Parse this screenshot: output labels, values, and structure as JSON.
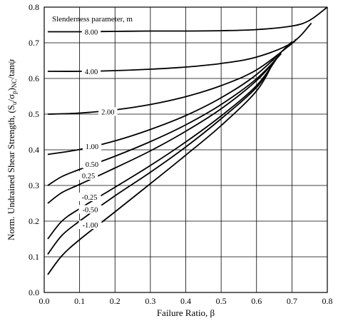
{
  "chart_data": {
    "type": "line",
    "title": "",
    "xlabel": "Failure Ratio, β",
    "ylabel_parts": {
      "a": "Norm. Undrained Shear Strength, (S",
      "u": "u",
      "b": "/σ",
      "p": "p",
      "c": ")",
      "nc": "NC",
      "d": "/tanψ"
    },
    "annotation": "Slenderness parameter, m",
    "xlim": [
      0,
      0.8
    ],
    "ylim": [
      0,
      0.8
    ],
    "grid": true,
    "x_ticks": [
      "0.0",
      "0.1",
      "0.2",
      "0.3",
      "0.4",
      "0.5",
      "0.6",
      "0.7",
      "0.8"
    ],
    "y_ticks": [
      "0.0",
      "0.1",
      "0.2",
      "0.3",
      "0.4",
      "0.5",
      "0.6",
      "0.7",
      "0.8"
    ],
    "series": [
      {
        "name": "8.00",
        "x": [
          0.01,
          0.1,
          0.2,
          0.3,
          0.4,
          0.5,
          0.6,
          0.7,
          0.75,
          0.8
        ],
        "y": [
          0.731,
          0.731,
          0.732,
          0.733,
          0.733,
          0.734,
          0.737,
          0.747,
          0.763,
          0.8
        ]
      },
      {
        "name": "4.00",
        "x": [
          0.01,
          0.1,
          0.2,
          0.3,
          0.4,
          0.5,
          0.6,
          0.7,
          0.755
        ],
        "y": [
          0.62,
          0.62,
          0.622,
          0.626,
          0.632,
          0.642,
          0.66,
          0.7,
          0.755
        ]
      },
      {
        "name": "2.00",
        "x": [
          0.01,
          0.1,
          0.2,
          0.3,
          0.4,
          0.5,
          0.6,
          0.7,
          0.71
        ],
        "y": [
          0.5,
          0.503,
          0.512,
          0.527,
          0.549,
          0.58,
          0.624,
          0.698,
          0.71
        ]
      },
      {
        "name": "1.00",
        "x": [
          0.01,
          0.1,
          0.2,
          0.3,
          0.4,
          0.5,
          0.6,
          0.7
        ],
        "y": [
          0.387,
          0.401,
          0.425,
          0.457,
          0.496,
          0.546,
          0.611,
          0.703
        ]
      },
      {
        "name": "0.50",
        "x": [
          0.01,
          0.05,
          0.1,
          0.2,
          0.3,
          0.4,
          0.5,
          0.6,
          0.67
        ],
        "y": [
          0.3,
          0.325,
          0.345,
          0.382,
          0.423,
          0.47,
          0.527,
          0.599,
          0.67
        ]
      },
      {
        "name": "0.25",
        "x": [
          0.01,
          0.05,
          0.1,
          0.2,
          0.3,
          0.4,
          0.5,
          0.6,
          0.665
        ],
        "y": [
          0.25,
          0.28,
          0.303,
          0.349,
          0.397,
          0.452,
          0.515,
          0.594,
          0.665
        ]
      },
      {
        "name": "-0.25",
        "x": [
          0.01,
          0.05,
          0.1,
          0.2,
          0.3,
          0.4,
          0.5,
          0.6,
          0.66
        ],
        "y": [
          0.15,
          0.2,
          0.235,
          0.295,
          0.356,
          0.422,
          0.495,
          0.58,
          0.66
        ]
      },
      {
        "name": "-0.50",
        "x": [
          0.01,
          0.05,
          0.1,
          0.2,
          0.3,
          0.4,
          0.5,
          0.6,
          0.655
        ],
        "y": [
          0.107,
          0.16,
          0.2,
          0.271,
          0.337,
          0.408,
          0.487,
          0.575,
          0.655
        ]
      },
      {
        "name": "-1.00",
        "x": [
          0.01,
          0.05,
          0.1,
          0.2,
          0.3,
          0.4,
          0.5,
          0.6,
          0.65
        ],
        "y": [
          0.05,
          0.103,
          0.148,
          0.226,
          0.305,
          0.385,
          0.468,
          0.565,
          0.65
        ]
      }
    ],
    "curve_labels": [
      {
        "text": "8.00",
        "x": 0.133,
        "y": 0.731
      },
      {
        "text": "4.00",
        "x": 0.133,
        "y": 0.62
      },
      {
        "text": "2.00",
        "x": 0.18,
        "y": 0.507
      },
      {
        "text": "1.00",
        "x": 0.135,
        "y": 0.41
      },
      {
        "text": "0.50",
        "x": 0.135,
        "y": 0.36
      },
      {
        "text": "0.25",
        "x": 0.125,
        "y": 0.328
      },
      {
        "text": "-0.25",
        "x": 0.128,
        "y": 0.268
      },
      {
        "text": "-0.50",
        "x": 0.13,
        "y": 0.233
      },
      {
        "text": "-1.00",
        "x": 0.13,
        "y": 0.19
      }
    ]
  }
}
